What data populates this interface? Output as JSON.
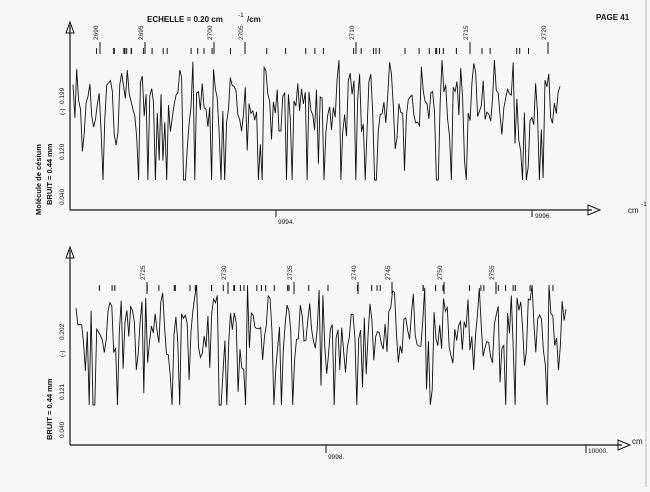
{
  "page_label": "PAGE 41",
  "scale_label": "ECHELLE = 0.20 cm",
  "scale_exp": "-1",
  "scale_unit": "/cm",
  "unit": "cm",
  "unit_exp": "-1",
  "chart_data": [
    {
      "type": "line",
      "molecule_label": "Molécule de césium",
      "noise_label": "BRUIT = 0.44 mm",
      "intensity_unit": "(-)",
      "y_ticks": [
        "0.040",
        "0.120",
        "0.199"
      ],
      "x_ticks": [
        "9994.",
        "9996."
      ],
      "line_numbers": [
        "2690",
        "2695",
        "2700",
        "2705",
        "2710",
        "2715",
        "2720"
      ],
      "line_marks_count": 42,
      "y_range": [
        0.0,
        0.25
      ]
    },
    {
      "type": "line",
      "noise_label": "BRUIT = 0.44 mm",
      "intensity_unit": "(-)",
      "y_ticks": [
        "0.040",
        "0.121",
        "0.202"
      ],
      "x_ticks": [
        "9998.",
        "10000."
      ],
      "line_numbers": [
        "2725",
        "2730",
        "2735",
        "2740",
        "2745",
        "2750",
        "2755"
      ],
      "line_marks_count": 42,
      "y_range": [
        0.0,
        0.25
      ]
    }
  ]
}
